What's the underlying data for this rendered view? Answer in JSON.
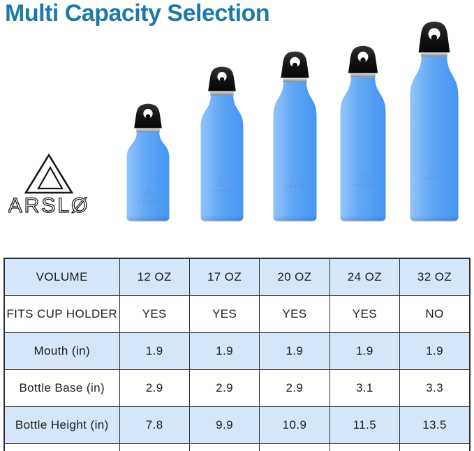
{
  "title": "Multi Capacity Selection",
  "brand": {
    "name": "ARSLØ"
  },
  "table": {
    "rows": [
      {
        "label": "VOLUME",
        "values": [
          "12 OZ",
          "17 OZ",
          "20 OZ",
          "24 OZ",
          "32 OZ"
        ]
      },
      {
        "label": "FITS CUP HOLDER",
        "values": [
          "YES",
          "YES",
          "YES",
          "YES",
          "NO"
        ]
      },
      {
        "label": "Mouth (in)",
        "values": [
          "1.9",
          "1.9",
          "1.9",
          "1.9",
          "1.9"
        ]
      },
      {
        "label": "Bottle Base (in)",
        "values": [
          "2.9",
          "2.9",
          "2.9",
          "3.1",
          "3.3"
        ]
      },
      {
        "label": "Bottle Height (in)",
        "values": [
          "7.8",
          "9.9",
          "10.9",
          "11.5",
          "13.5"
        ]
      }
    ]
  },
  "colors": {
    "title": "#1b79ab",
    "rowblue": "#d5e6f8",
    "border": "#2e2e2e",
    "bottle_blue_light": "#93c4fa",
    "bottle_blue_mid": "#63a9f6",
    "bottle_blue_dark": "#4694f1",
    "cap_black": "#141414",
    "collar_silver": "#b9bcc0"
  }
}
